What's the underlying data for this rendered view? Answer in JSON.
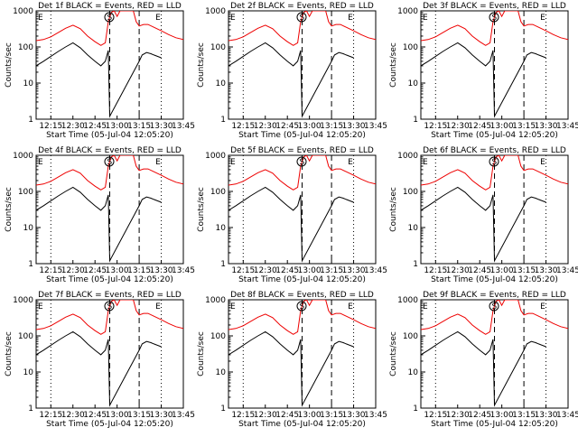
{
  "chart_data": {
    "type": "line",
    "grid_rows": 3,
    "grid_cols": 3,
    "ylabel": "Counts/sec",
    "xlabel": "Start Time (05-Jul-04 12:05:20)",
    "yscale": "log",
    "ylim": [
      1,
      1000
    ],
    "y_ticks": [
      1,
      10,
      100,
      1000
    ],
    "y_tick_labels": [
      "1",
      "10",
      "100",
      "1000"
    ],
    "xlim_minutes": [
      0,
      100
    ],
    "x_ticks": [
      10,
      25,
      40,
      55,
      70,
      85,
      100
    ],
    "x_tick_labels": [
      "12:15",
      "12:30",
      "12:45",
      "13:00",
      "13:15",
      "13:30",
      "13:45"
    ],
    "series_colors": {
      "events": "#000000",
      "lld": "#ee0000"
    },
    "markers": [
      "S",
      "E"
    ],
    "panels": [
      {
        "title": "Det 1f BLACK = Events, RED = LLD"
      },
      {
        "title": "Det 2f BLACK = Events, RED = LLD"
      },
      {
        "title": "Det 3f BLACK = Events, RED = LLD"
      },
      {
        "title": "Det 4f BLACK = Events, RED = LLD"
      },
      {
        "title": "Det 5f BLACK = Events, RED = LLD"
      },
      {
        "title": "Det 6f BLACK = Events, RED = LLD"
      },
      {
        "title": "Det 7f BLACK = Events, RED = LLD"
      },
      {
        "title": "Det 8f BLACK = Events, RED = LLD"
      },
      {
        "title": "Det 9f BLACK = Events, RED = LLD"
      }
    ],
    "lld_series": {
      "x": [
        0,
        5,
        10,
        15,
        20,
        25,
        30,
        35,
        40,
        44,
        47,
        49,
        51,
        53,
        55,
        57,
        63,
        66,
        68,
        70,
        73,
        76,
        80,
        85,
        90,
        95,
        100
      ],
      "y": [
        150,
        160,
        190,
        250,
        330,
        400,
        320,
        200,
        140,
        110,
        130,
        500,
        900,
        1000,
        700,
        1000,
        1000,
        1000,
        500,
        380,
        420,
        420,
        350,
        280,
        220,
        180,
        160
      ]
    },
    "events_series": {
      "x": [
        0,
        5,
        10,
        15,
        20,
        25,
        30,
        35,
        40,
        44,
        47,
        49,
        50,
        70,
        72,
        75,
        78,
        80,
        85
      ],
      "y": [
        30,
        40,
        55,
        75,
        100,
        130,
        95,
        60,
        40,
        30,
        40,
        80,
        1.2,
        40,
        60,
        70,
        65,
        60,
        50
      ]
    },
    "vlines": [
      {
        "x": 10,
        "style": "dotted"
      },
      {
        "x": 50,
        "style": "dashed"
      },
      {
        "x": 70,
        "style": "dashed"
      },
      {
        "x": 85,
        "style": "dotted"
      }
    ]
  }
}
